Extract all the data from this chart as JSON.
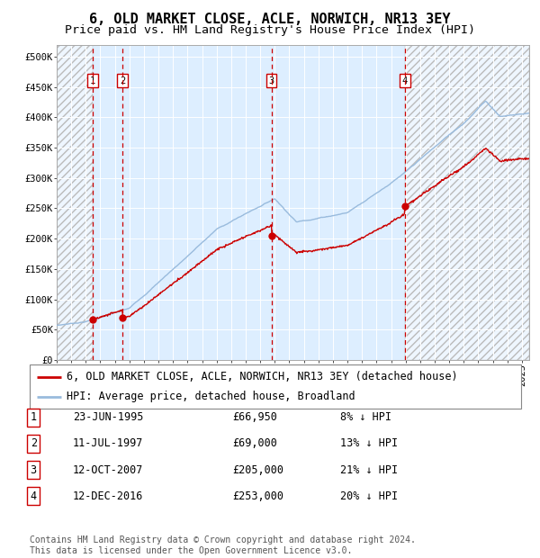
{
  "title": "6, OLD MARKET CLOSE, ACLE, NORWICH, NR13 3EY",
  "subtitle": "Price paid vs. HM Land Registry's House Price Index (HPI)",
  "ylim": [
    0,
    520000
  ],
  "xlim_start": 1993.0,
  "xlim_end": 2025.5,
  "yticks": [
    0,
    50000,
    100000,
    150000,
    200000,
    250000,
    300000,
    350000,
    400000,
    450000,
    500000
  ],
  "ytick_labels": [
    "£0",
    "£50K",
    "£100K",
    "£150K",
    "£200K",
    "£250K",
    "£300K",
    "£350K",
    "£400K",
    "£450K",
    "£500K"
  ],
  "background_color": "#ffffff",
  "plot_bg_color": "#ddeeff",
  "grid_color": "#ffffff",
  "sale_color": "#cc0000",
  "hpi_color": "#99bbdd",
  "vline_color": "#cc0000",
  "label_border_color": "#cc0000",
  "purchases": [
    {
      "date_year": 1995.478,
      "price": 66950,
      "label": "1"
    },
    {
      "date_year": 1997.526,
      "price": 69000,
      "label": "2"
    },
    {
      "date_year": 2007.781,
      "price": 205000,
      "label": "3"
    },
    {
      "date_year": 2016.945,
      "price": 253000,
      "label": "4"
    }
  ],
  "legend_sale_label": "6, OLD MARKET CLOSE, ACLE, NORWICH, NR13 3EY (detached house)",
  "legend_hpi_label": "HPI: Average price, detached house, Broadland",
  "table_rows": [
    {
      "num": "1",
      "date": "23-JUN-1995",
      "price": "£66,950",
      "hpi": "8% ↓ HPI"
    },
    {
      "num": "2",
      "date": "11-JUL-1997",
      "price": "£69,000",
      "hpi": "13% ↓ HPI"
    },
    {
      "num": "3",
      "date": "12-OCT-2007",
      "price": "£205,000",
      "hpi": "21% ↓ HPI"
    },
    {
      "num": "4",
      "date": "12-DEC-2016",
      "price": "£253,000",
      "hpi": "20% ↓ HPI"
    }
  ],
  "footer": "Contains HM Land Registry data © Crown copyright and database right 2024.\nThis data is licensed under the Open Government Licence v3.0.",
  "title_fontsize": 11,
  "subtitle_fontsize": 9.5,
  "tick_fontsize": 7.5,
  "legend_fontsize": 8.5,
  "table_fontsize": 8.5,
  "footer_fontsize": 7
}
